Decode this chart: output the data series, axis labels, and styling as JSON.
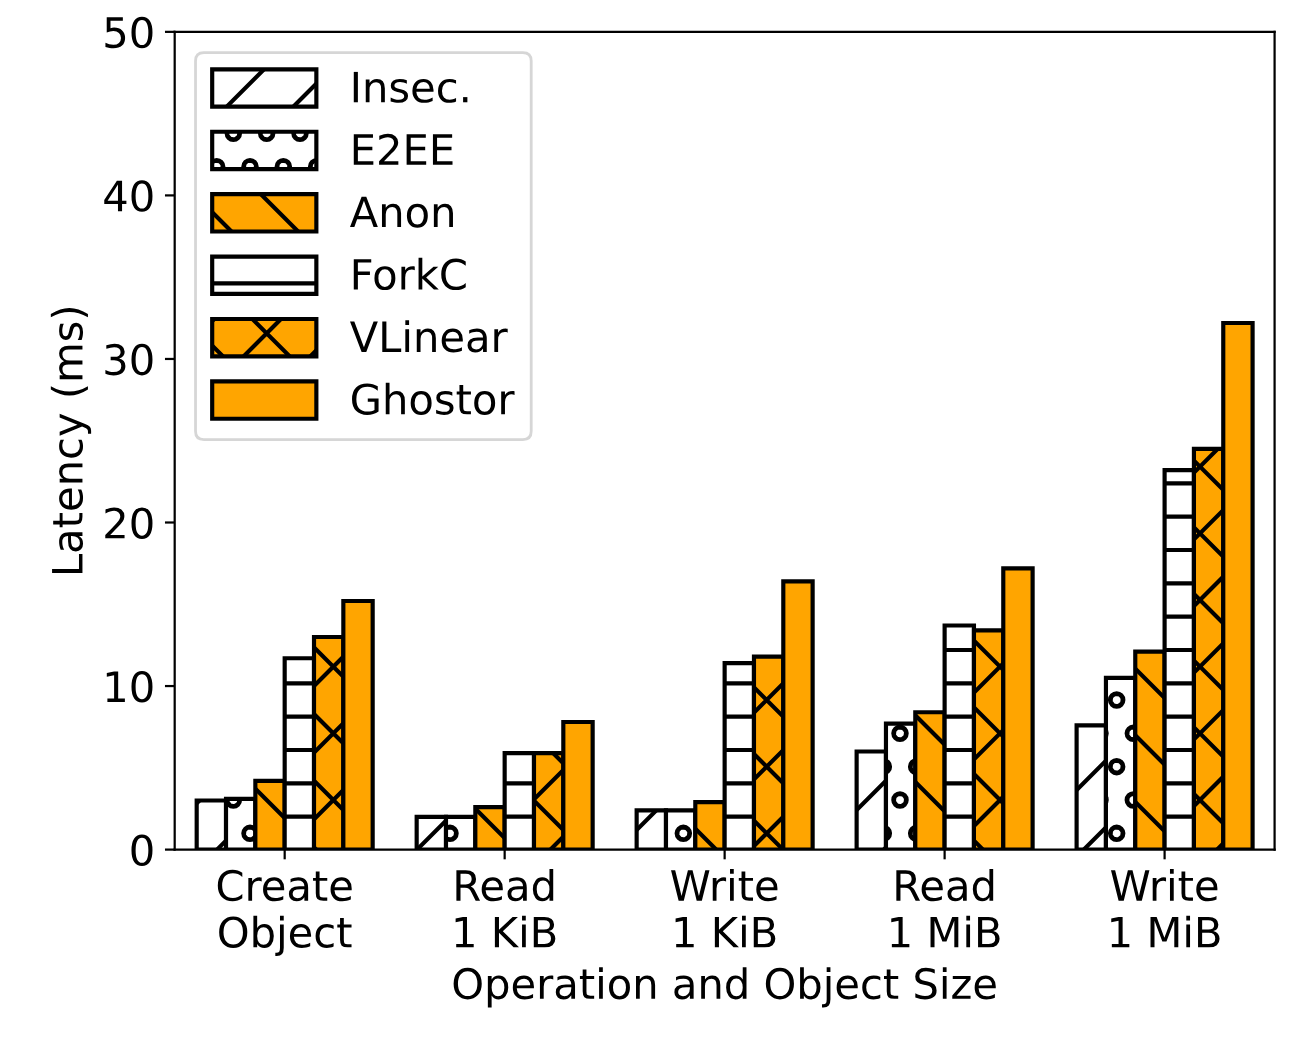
{
  "chart_data": {
    "type": "bar",
    "xlabel": "Operation and Object Size",
    "ylabel": "Latency (ms)",
    "categories": [
      "Create\nObject",
      "Read\n1 KiB",
      "Write\n1 KiB",
      "Read\n1 MiB",
      "Write\n1 MiB"
    ],
    "series": [
      {
        "name": "Insec.",
        "color": "#ffffff",
        "values": [
          3.0,
          2.0,
          2.4,
          6.0,
          7.6
        ]
      },
      {
        "name": "E2EE",
        "color": "#ffffff",
        "values": [
          3.1,
          2.0,
          2.4,
          7.7,
          10.5
        ]
      },
      {
        "name": "Anon",
        "color": "#ffa500",
        "values": [
          4.2,
          2.6,
          2.9,
          8.4,
          12.1
        ]
      },
      {
        "name": "ForkC",
        "color": "#ffffff",
        "values": [
          11.7,
          5.9,
          11.4,
          13.7,
          23.2
        ]
      },
      {
        "name": "VLinear",
        "color": "#ffa500",
        "values": [
          13.0,
          5.9,
          11.8,
          13.4,
          24.5
        ]
      },
      {
        "name": "Ghostor",
        "color": "#ffa500",
        "values": [
          15.2,
          7.8,
          16.4,
          17.2,
          32.2
        ]
      }
    ],
    "ylim": [
      0,
      50
    ],
    "yticks": [
      0,
      10,
      20,
      30,
      40,
      50
    ],
    "grid": false,
    "legend": "top left"
  }
}
